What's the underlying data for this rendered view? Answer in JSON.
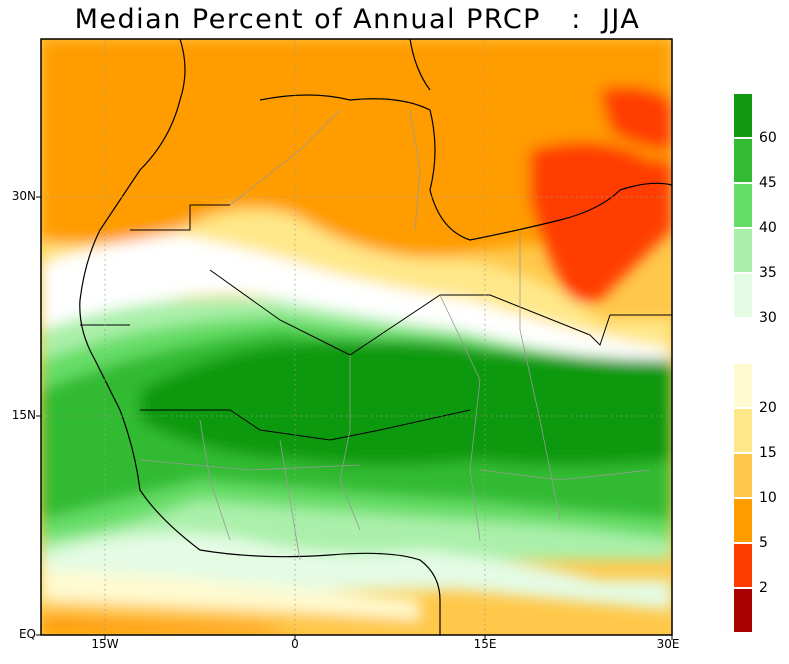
{
  "title": "Median Percent of Annual PRCP   :  JJA",
  "axes": {
    "x_ticks": [
      "15W",
      "0",
      "15E",
      "30E"
    ],
    "y_ticks": [
      "30N",
      "15N",
      "EQ"
    ]
  },
  "legend": {
    "upper": [
      {
        "label": "60",
        "color": "#119911"
      },
      {
        "label": "45",
        "color": "#33bb33"
      },
      {
        "label": "40",
        "color": "#66dd66"
      },
      {
        "label": "35",
        "color": "#aaf0aa"
      },
      {
        "label": "30",
        "color": "#e4fbe4"
      },
      {
        "label": "",
        "color": "#ffffff"
      }
    ],
    "lower": [
      {
        "label": "20",
        "color": "#fffad0"
      },
      {
        "label": "15",
        "color": "#ffe88a"
      },
      {
        "label": "10",
        "color": "#ffc84a"
      },
      {
        "label": "5",
        "color": "#ff9c00"
      },
      {
        "label": "2",
        "color": "#ff3c00"
      },
      {
        "label": "",
        "color": "#aa0000"
      }
    ]
  }
}
